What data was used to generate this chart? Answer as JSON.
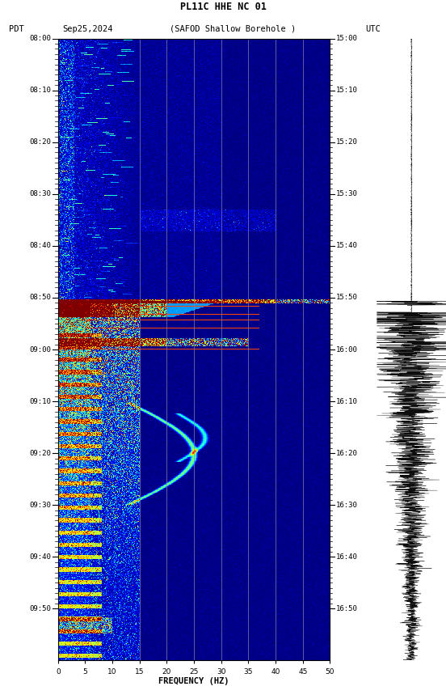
{
  "channel_label": "PL11C HHE NC 01",
  "pdt_label": "PDT",
  "utc_label": "UTC",
  "date_label": "Sep25,2024",
  "station_label": "(SAFOD Shallow Borehole )",
  "freq_label": "FREQUENCY (HZ)",
  "freq_ticks": [
    0,
    5,
    10,
    15,
    20,
    25,
    30,
    35,
    40,
    45,
    50
  ],
  "pdt_ticks": [
    "08:00",
    "08:10",
    "08:20",
    "08:30",
    "08:40",
    "08:50",
    "09:00",
    "09:10",
    "09:20",
    "09:30",
    "09:40",
    "09:50"
  ],
  "utc_ticks": [
    "15:00",
    "15:10",
    "15:20",
    "15:30",
    "15:40",
    "15:50",
    "16:00",
    "16:10",
    "16:20",
    "16:30",
    "16:40",
    "16:50"
  ],
  "vert_lines_freq": [
    15,
    20,
    25,
    30,
    35,
    40,
    45
  ],
  "colormap": "jet",
  "fig_bg": "#ffffff",
  "n_time": 1160,
  "n_freq": 500
}
